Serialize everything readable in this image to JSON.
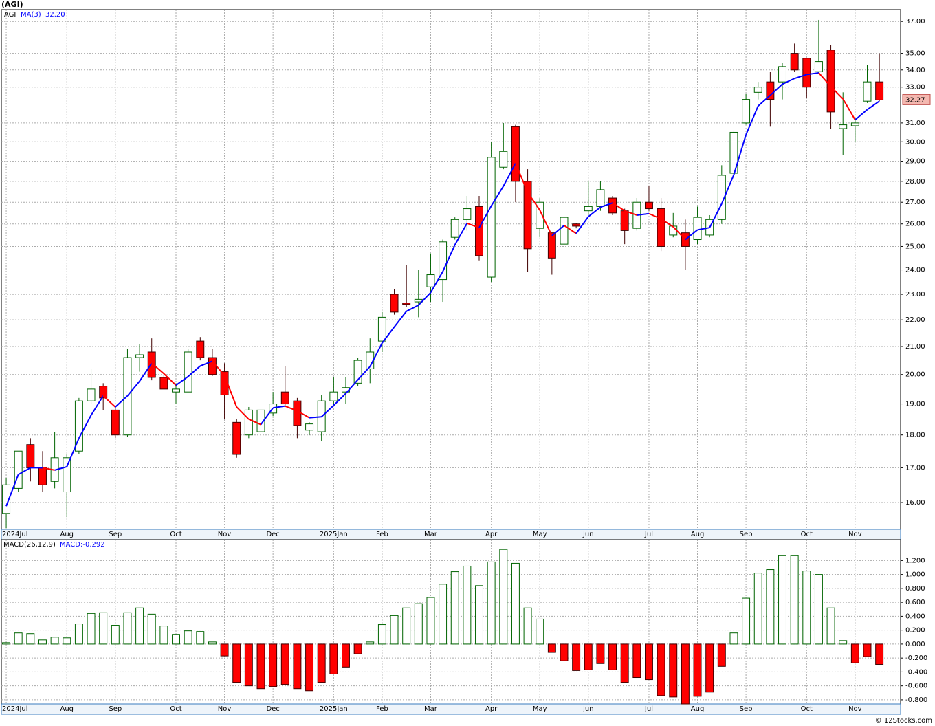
{
  "chart_data": [
    {
      "type": "candlestick",
      "title": "(AGI)",
      "series_name": "AGI",
      "open": [
        15.7,
        16.4,
        17.7,
        17.0,
        16.6,
        16.3,
        17.5,
        19.1,
        19.6,
        18.8,
        18.0,
        20.6,
        20.8,
        19.9,
        19.4,
        19.4,
        21.2,
        20.6,
        20.1,
        18.4,
        18.0,
        18.1,
        18.7,
        19.4,
        19.1,
        18.15,
        18.1,
        19.1,
        19.4,
        19.7,
        20.2,
        21.2,
        23.0,
        22.65,
        22.7,
        23.3,
        23.6,
        25.4,
        26.2,
        26.8,
        23.7,
        28.7,
        30.8,
        28.0,
        25.8,
        25.6,
        25.1,
        26.0,
        26.6,
        26.8,
        27.2,
        26.6,
        25.8,
        27.0,
        26.7,
        25.5,
        25.6,
        25.3,
        25.5,
        26.2,
        28.4,
        31.0,
        32.7,
        33.3,
        33.3,
        35.0,
        34.7,
        33.9,
        35.2,
        30.7,
        30.85,
        32.2,
        33.3
      ],
      "high": [
        16.7,
        17.5,
        17.9,
        17.5,
        18.1,
        17.4,
        19.2,
        20.2,
        19.7,
        18.9,
        20.9,
        21.1,
        21.3,
        20.0,
        19.7,
        20.9,
        21.35,
        20.9,
        20.4,
        18.5,
        18.9,
        18.9,
        19.4,
        20.3,
        19.2,
        18.4,
        19.3,
        19.9,
        19.9,
        20.6,
        21.3,
        22.3,
        23.2,
        24.2,
        24.0,
        24.7,
        25.3,
        26.3,
        27.3,
        27.3,
        30.0,
        31.0,
        30.9,
        28.6,
        27.2,
        25.6,
        26.5,
        26.05,
        28.0,
        28.0,
        27.3,
        26.7,
        27.2,
        27.8,
        27.2,
        26.5,
        26.2,
        26.8,
        26.4,
        28.8,
        30.6,
        32.6,
        33.3,
        33.9,
        34.4,
        35.6,
        34.7,
        37.1,
        35.5,
        32.7,
        31.3,
        34.3,
        35.0
      ],
      "low": [
        15.3,
        16.3,
        16.6,
        16.3,
        16.4,
        15.6,
        17.4,
        19.0,
        18.8,
        17.9,
        17.95,
        20.1,
        19.8,
        19.5,
        19.0,
        19.4,
        20.5,
        19.95,
        18.5,
        17.3,
        17.9,
        18.05,
        18.6,
        18.9,
        17.9,
        18.0,
        17.8,
        18.95,
        19.0,
        19.6,
        19.7,
        20.8,
        22.2,
        22.5,
        22.1,
        22.7,
        22.7,
        25.3,
        25.7,
        24.4,
        23.5,
        28.6,
        27.0,
        23.9,
        25.4,
        23.8,
        24.9,
        25.8,
        26.4,
        26.6,
        26.4,
        25.1,
        25.7,
        26.6,
        24.8,
        25.4,
        24.0,
        25.1,
        25.4,
        26.0,
        28.2,
        30.9,
        32.3,
        30.8,
        32.3,
        33.9,
        32.4,
        33.8,
        30.7,
        29.3,
        30.0,
        32.1,
        32.2
      ],
      "close": [
        16.5,
        17.5,
        17.0,
        16.5,
        17.3,
        17.3,
        19.1,
        19.5,
        19.2,
        18.0,
        20.6,
        20.7,
        19.9,
        19.5,
        19.5,
        20.8,
        20.6,
        20.0,
        19.3,
        17.4,
        18.8,
        18.8,
        19.0,
        19.0,
        18.3,
        18.35,
        19.1,
        19.4,
        19.55,
        20.5,
        20.8,
        22.1,
        22.3,
        22.6,
        22.8,
        23.8,
        25.2,
        26.2,
        26.7,
        24.6,
        29.2,
        29.5,
        28.0,
        24.9,
        27.0,
        24.5,
        26.3,
        25.9,
        26.8,
        27.6,
        26.5,
        25.7,
        27.0,
        26.7,
        25.0,
        25.9,
        25.0,
        26.3,
        26.2,
        28.3,
        30.5,
        32.3,
        33.0,
        32.3,
        34.2,
        34.0,
        33.0,
        34.5,
        31.6,
        30.9,
        31.0,
        33.3,
        32.27
      ],
      "up_color": "#ffffff",
      "up_edge": "#006400",
      "down_color": "#ff0000",
      "down_edge": "#400000",
      "overlay": {
        "name": "MA(3)",
        "last_label": "32.20",
        "up_color": "#0000ff",
        "down_color": "#ff0000",
        "values": [
          15.9,
          16.8,
          17.0,
          17.0,
          16.93,
          17.03,
          17.9,
          18.63,
          19.27,
          18.9,
          19.27,
          19.77,
          20.4,
          20.03,
          19.63,
          19.93,
          20.3,
          20.47,
          19.97,
          18.9,
          18.5,
          18.33,
          18.87,
          18.93,
          18.77,
          18.55,
          18.58,
          18.95,
          19.35,
          19.82,
          20.28,
          21.13,
          21.73,
          22.33,
          22.57,
          23.07,
          23.93,
          25.07,
          26.03,
          25.83,
          26.83,
          27.77,
          28.9,
          27.47,
          26.63,
          25.47,
          25.93,
          25.57,
          26.33,
          26.77,
          26.97,
          26.6,
          26.4,
          26.47,
          26.23,
          25.87,
          25.3,
          25.73,
          25.83,
          26.93,
          28.33,
          30.37,
          31.93,
          32.53,
          33.17,
          33.5,
          33.73,
          33.83,
          33.03,
          32.33,
          31.17,
          31.73,
          32.2
        ]
      },
      "xlim": [
        -0.4,
        73.75
      ],
      "xticks": [
        {
          "value": 0,
          "label": "2024Jul"
        },
        {
          "value": 5,
          "label": "Aug"
        },
        {
          "value": 9,
          "label": "Sep"
        },
        {
          "value": 14,
          "label": "Oct"
        },
        {
          "value": 18,
          "label": "Nov"
        },
        {
          "value": 22,
          "label": "Dec"
        },
        {
          "value": 27,
          "label": "2025Jan"
        },
        {
          "value": 31,
          "label": "Feb"
        },
        {
          "value": 35,
          "label": "Mar"
        },
        {
          "value": 40,
          "label": "Apr"
        },
        {
          "value": 44,
          "label": "May"
        },
        {
          "value": 48,
          "label": "Jun"
        },
        {
          "value": 53,
          "label": "Jul"
        },
        {
          "value": 57,
          "label": "Aug"
        },
        {
          "value": 61,
          "label": "Sep"
        },
        {
          "value": 66,
          "label": "Oct"
        },
        {
          "value": 70,
          "label": "Nov"
        }
      ],
      "ylim": [
        15.27,
        37.77
      ],
      "log_scale": true,
      "grid": true,
      "yticks": [
        {
          "value": 16,
          "label": "16.00"
        },
        {
          "value": 17,
          "label": "17.00"
        },
        {
          "value": 18,
          "label": "18.00"
        },
        {
          "value": 19,
          "label": "19.00"
        },
        {
          "value": 20,
          "label": "20.00"
        },
        {
          "value": 21,
          "label": "21.00"
        },
        {
          "value": 22,
          "label": "22.00"
        },
        {
          "value": 23,
          "label": "23.00"
        },
        {
          "value": 24,
          "label": "24.00"
        },
        {
          "value": 25,
          "label": "25.00"
        },
        {
          "value": 26,
          "label": "26.00"
        },
        {
          "value": 27,
          "label": "27.00"
        },
        {
          "value": 28,
          "label": "28.00"
        },
        {
          "value": 29,
          "label": "29.00"
        },
        {
          "value": 30,
          "label": "30.00"
        },
        {
          "value": 31,
          "label": "31.00"
        },
        {
          "value": 33,
          "label": "33.00"
        },
        {
          "value": 34,
          "label": "34.00"
        },
        {
          "value": 35,
          "label": "35.00"
        },
        {
          "value": 37,
          "label": "37.00"
        }
      ]
    },
    {
      "type": "bar",
      "title": "MACD(26,12,9)",
      "last_label": "MACD:-0.292",
      "values": [
        0.02,
        0.16,
        0.15,
        0.06,
        0.1,
        0.09,
        0.29,
        0.44,
        0.45,
        0.27,
        0.45,
        0.52,
        0.43,
        0.26,
        0.14,
        0.19,
        0.18,
        0.03,
        -0.17,
        -0.55,
        -0.6,
        -0.64,
        -0.61,
        -0.58,
        -0.64,
        -0.67,
        -0.55,
        -0.43,
        -0.33,
        -0.14,
        0.03,
        0.28,
        0.41,
        0.52,
        0.58,
        0.67,
        0.86,
        1.04,
        1.12,
        0.84,
        1.18,
        1.36,
        1.16,
        0.52,
        0.36,
        -0.12,
        -0.24,
        -0.38,
        -0.37,
        -0.28,
        -0.37,
        -0.55,
        -0.48,
        -0.51,
        -0.74,
        -0.76,
        -0.86,
        -0.75,
        -0.69,
        -0.32,
        0.16,
        0.66,
        1.02,
        1.07,
        1.27,
        1.27,
        1.05,
        1.0,
        0.52,
        0.05,
        -0.27,
        -0.18,
        -0.292
      ],
      "pos_color": "#ffffff",
      "pos_edge": "#006400",
      "neg_color": "#ff0000",
      "neg_edge": "#400000",
      "xlim": [
        -0.4,
        73.75
      ],
      "xticks": [
        {
          "value": 0,
          "label": "2024Jul"
        },
        {
          "value": 5,
          "label": "Aug"
        },
        {
          "value": 9,
          "label": "Sep"
        },
        {
          "value": 14,
          "label": "Oct"
        },
        {
          "value": 18,
          "label": "Nov"
        },
        {
          "value": 22,
          "label": "Dec"
        },
        {
          "value": 27,
          "label": "2025Jan"
        },
        {
          "value": 31,
          "label": "Feb"
        },
        {
          "value": 35,
          "label": "Mar"
        },
        {
          "value": 40,
          "label": "Apr"
        },
        {
          "value": 44,
          "label": "May"
        },
        {
          "value": 48,
          "label": "Jun"
        },
        {
          "value": 53,
          "label": "Jul"
        },
        {
          "value": 57,
          "label": "Aug"
        },
        {
          "value": 61,
          "label": "Sep"
        },
        {
          "value": 66,
          "label": "Oct"
        },
        {
          "value": 70,
          "label": "Nov"
        }
      ],
      "ylim": [
        -0.86,
        1.5
      ],
      "grid": true,
      "yticks": [
        {
          "value": -0.8,
          "label": "-0.800"
        },
        {
          "value": -0.6,
          "label": "-0.600"
        },
        {
          "value": -0.4,
          "label": "-0.400"
        },
        {
          "value": -0.2,
          "label": "-0.200"
        },
        {
          "value": 0,
          "label": "0.000"
        },
        {
          "value": 0.2,
          "label": "0.200"
        },
        {
          "value": 0.4,
          "label": "0.400"
        },
        {
          "value": 0.6,
          "label": "0.600"
        },
        {
          "value": 0.8,
          "label": "0.800"
        },
        {
          "value": 1.0,
          "label": "1.000"
        },
        {
          "value": 1.2,
          "label": "1.200"
        }
      ]
    }
  ],
  "footer": "© 12Stocks.com"
}
